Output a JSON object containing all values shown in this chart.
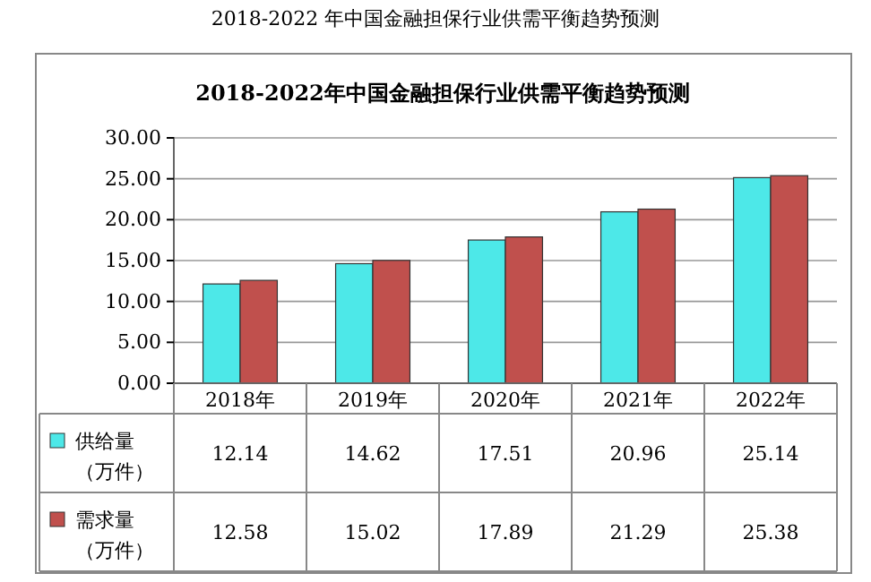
{
  "chart_data": {
    "type": "bar",
    "title": "2018-2022年中国金融担保行业供需平衡趋势预测",
    "annotations": [
      "2018-2022 年中国金融担保行业供需平衡趋势预测"
    ],
    "categories": [
      "2018年",
      "2019年",
      "2020年",
      "2021年",
      "2022年"
    ],
    "series": [
      {
        "name": "供给量（万件）",
        "color": "#4de8e8",
        "values": [
          12.14,
          14.62,
          17.51,
          20.96,
          25.14
        ]
      },
      {
        "name": "需求量（万件）",
        "color": "#c0504d",
        "values": [
          12.58,
          15.02,
          17.89,
          21.29,
          25.38
        ]
      }
    ],
    "ylim": [
      0,
      30
    ],
    "yticks": [
      {
        "value": 0,
        "label": "0.00"
      },
      {
        "value": 5,
        "label": "5.00"
      },
      {
        "value": 10,
        "label": "10.00"
      },
      {
        "value": 15,
        "label": "15.00"
      },
      {
        "value": 20,
        "label": "20.00"
      },
      {
        "value": 25,
        "label": "25.00"
      },
      {
        "value": 30,
        "label": "30.00"
      }
    ],
    "grid": "y",
    "legend": "bottom",
    "data_labels": true
  }
}
